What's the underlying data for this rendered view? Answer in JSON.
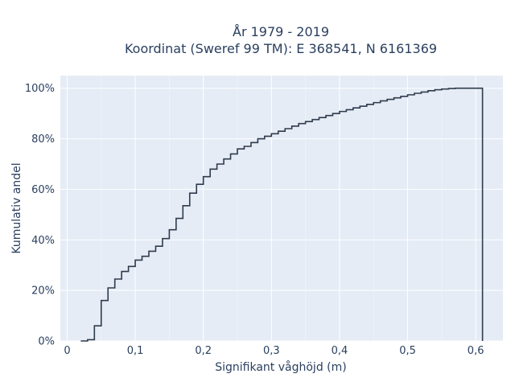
{
  "chart_data": {
    "type": "line",
    "line_shape": "step",
    "title": "År 1979 - 2019",
    "subtitle": "Koordinat (Sweref 99 TM): E 368541, N 6161369",
    "xlabel": "Signifikant våghöjd (m)",
    "ylabel": "Kumulativ andel",
    "xlim": [
      -0.01,
      0.64
    ],
    "ylim": [
      0,
      1.05
    ],
    "x_ticks": [
      0,
      0.1,
      0.2,
      0.3,
      0.4,
      0.5,
      0.6
    ],
    "x_tick_labels": [
      "0",
      "0,1",
      "0,2",
      "0,3",
      "0,4",
      "0,5",
      "0,6"
    ],
    "y_ticks": [
      0,
      0.2,
      0.4,
      0.6,
      0.8,
      1.0
    ],
    "y_tick_labels": [
      "0%",
      "20%",
      "40%",
      "60%",
      "80%",
      "100%"
    ],
    "grid": true,
    "colors": {
      "plot_background": "#e5ecf6",
      "grid": "#ffffff",
      "line": "#2f3b4c",
      "text": "#2a3f5f"
    },
    "series": [
      {
        "x": [
          0.02,
          0.03,
          0.04,
          0.05,
          0.06,
          0.07,
          0.08,
          0.09,
          0.1,
          0.11,
          0.12,
          0.13,
          0.14,
          0.15,
          0.16,
          0.17,
          0.18,
          0.19,
          0.2,
          0.21,
          0.22,
          0.23,
          0.24,
          0.25,
          0.26,
          0.27,
          0.28,
          0.29,
          0.3,
          0.31,
          0.32,
          0.33,
          0.34,
          0.35,
          0.36,
          0.37,
          0.38,
          0.39,
          0.4,
          0.41,
          0.42,
          0.43,
          0.44,
          0.45,
          0.46,
          0.47,
          0.48,
          0.49,
          0.5,
          0.51,
          0.52,
          0.53,
          0.54,
          0.55,
          0.56,
          0.57,
          0.58,
          0.59,
          0.6,
          0.61
        ],
        "y": [
          0.0,
          0.005,
          0.06,
          0.16,
          0.21,
          0.245,
          0.275,
          0.295,
          0.32,
          0.335,
          0.355,
          0.375,
          0.405,
          0.44,
          0.485,
          0.535,
          0.585,
          0.62,
          0.65,
          0.68,
          0.7,
          0.72,
          0.74,
          0.76,
          0.77,
          0.785,
          0.8,
          0.81,
          0.82,
          0.83,
          0.84,
          0.85,
          0.86,
          0.868,
          0.876,
          0.884,
          0.892,
          0.9,
          0.908,
          0.915,
          0.922,
          0.929,
          0.936,
          0.943,
          0.95,
          0.956,
          0.962,
          0.968,
          0.974,
          0.98,
          0.985,
          0.99,
          0.994,
          0.997,
          0.999,
          1.0,
          1.0,
          1.0,
          1.0,
          0.0
        ]
      }
    ]
  }
}
